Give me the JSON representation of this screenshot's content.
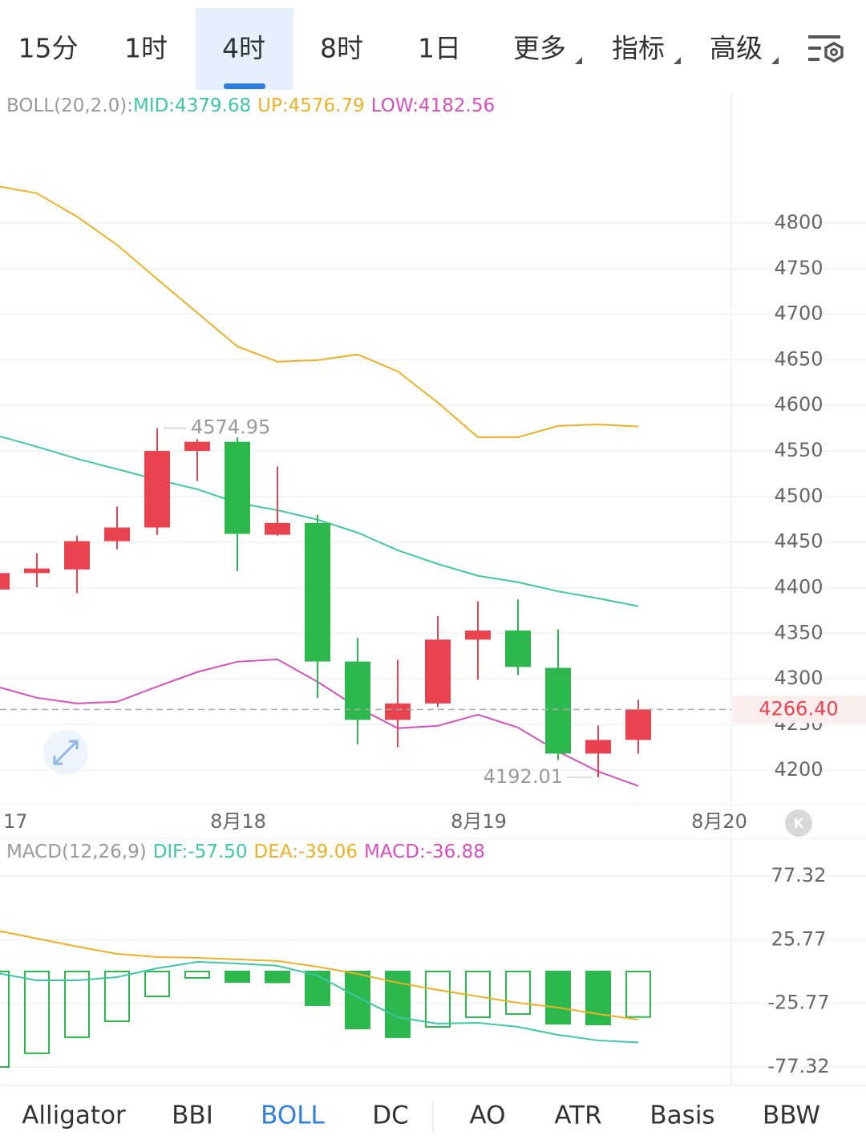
{
  "timeframe_tabs": [
    {
      "label": "15分",
      "active": false
    },
    {
      "label": "1时",
      "active": false
    },
    {
      "label": "4时",
      "active": true
    },
    {
      "label": "8时",
      "active": false
    },
    {
      "label": "1日",
      "active": false
    }
  ],
  "menu_tabs": [
    "更多",
    "指标",
    "高级"
  ],
  "main_chart": {
    "type": "candlestick",
    "indicator_label": "BOLL(20,2.0):",
    "legend": [
      {
        "label": "MID:4379.68",
        "color": "#3cc8a8"
      },
      {
        "label": "UP:4576.79",
        "color": "#eeb024"
      },
      {
        "label": "LOW:4182.56",
        "color": "#d64ec0"
      }
    ],
    "up_color": "#e8434f",
    "down_color": "#2db84d",
    "candles": {
      "open": [
        4398,
        4416,
        4420,
        4451,
        4466,
        4550,
        4560,
        4458,
        4471,
        4319,
        4255,
        4273,
        4343,
        4353,
        4312,
        4218,
        4233
      ],
      "high": [
        4416,
        4437.5,
        4457,
        4489,
        4574.95,
        4563,
        4565,
        4533,
        4480,
        4345,
        4321,
        4369,
        4385,
        4387,
        4354,
        4249,
        4277
      ],
      "low": [
        4398,
        4400.6,
        4394,
        4442,
        4458,
        4517,
        4418,
        4457,
        4279,
        4228,
        4225,
        4269,
        4299,
        4304,
        4211,
        4192.01,
        4218
      ],
      "close": [
        4416,
        4421,
        4451,
        4466,
        4550,
        4560,
        4459,
        4471,
        4319,
        4255,
        4273,
        4343,
        4353,
        4313,
        4218,
        4233,
        4266.4
      ]
    },
    "series": [
      {
        "name": "MID",
        "color": "#3cc8a8",
        "values": [
          4566.9,
          4554.6,
          4541.4,
          4530,
          4518.5,
          4508,
          4493,
          4485,
          4474.6,
          4460.4,
          4441,
          4426,
          4413,
          4406,
          4396,
          4388.3,
          4379.68
        ]
      },
      {
        "name": "UP",
        "color": "#eeb024",
        "values": [
          4840.5,
          4832.6,
          4807,
          4776,
          4738.5,
          4701.5,
          4664.6,
          4647.9,
          4649.6,
          4655.8,
          4637.3,
          4603,
          4565,
          4565,
          4577.4,
          4579,
          4576.79
        ]
      },
      {
        "name": "LOW",
        "color": "#d64ec0",
        "values": [
          4291.5,
          4279.2,
          4273,
          4274.8,
          4291.5,
          4307.4,
          4318.8,
          4321.4,
          4296.8,
          4268.6,
          4245.8,
          4248.4,
          4260.7,
          4246.6,
          4220.3,
          4198.3,
          4182.56
        ]
      }
    ],
    "ylim": [
      4162,
      4943.4
    ],
    "yticks": [
      4200,
      4250,
      4300,
      4350,
      4400,
      4450,
      4500,
      4550,
      4600,
      4650,
      4700,
      4750,
      4800
    ],
    "last_price": {
      "value": 4266.4,
      "label": "4266.40"
    },
    "high_label": {
      "value": 4574.95,
      "label": "4574.95"
    },
    "low_label": {
      "value": 4192.01,
      "label": "4192.01"
    },
    "x_labels": [
      "17",
      "8月18",
      "8月19",
      "8月20"
    ]
  },
  "macd_chart": {
    "type": "macd",
    "indicator_label": "MACD(12,26,9)",
    "legend": [
      {
        "label": "DIF:-57.50",
        "color": "#3cc8a8"
      },
      {
        "label": "DEA:-39.06",
        "color": "#eeb024"
      },
      {
        "label": "MACD:-36.88",
        "color": "#d64ec0"
      }
    ],
    "up_color": "#e8434f",
    "down_color": "#2db84d",
    "histogram": [
      -77.4,
      -66.3,
      -53.3,
      -40.3,
      -20.2,
      -5.2,
      -8.5,
      -8.8,
      -27.3,
      -46.2,
      -53.3,
      -44.9,
      -37.1,
      -34.5,
      -42.3,
      -42.9,
      -36.88
    ],
    "series": [
      {
        "name": "DIF",
        "color": "#3cc8a8",
        "values": [
          -1.3,
          -7.2,
          -7.2,
          -4.6,
          2.6,
          7.8,
          6.5,
          4.6,
          -3.3,
          -20.8,
          -37.1,
          -42.3,
          -41.6,
          -44.9,
          -51.4,
          -55.9,
          -57.5
        ]
      },
      {
        "name": "DEA",
        "color": "#eeb024",
        "values": [
          33.2,
          26.7,
          20.2,
          14.3,
          11.7,
          11.1,
          9.8,
          8.5,
          3.9,
          -2.0,
          -9.1,
          -15.0,
          -20.2,
          -25.4,
          -29.3,
          -34.5,
          -39.06
        ]
      }
    ],
    "ylim": [
      -91.7,
      107.9
    ],
    "yticks": [
      77.32,
      25.77,
      -25.77,
      -77.32
    ]
  },
  "indicator_tabs": [
    {
      "label": "Alligator",
      "active": false
    },
    {
      "label": "BBI",
      "active": false
    },
    {
      "label": "BOLL",
      "active": true
    },
    {
      "label": "DC",
      "active": false
    },
    {
      "label": "AO",
      "active": false
    },
    {
      "label": "ATR",
      "active": false
    },
    {
      "label": "Basis",
      "active": false
    },
    {
      "label": "BBW",
      "active": false
    }
  ]
}
